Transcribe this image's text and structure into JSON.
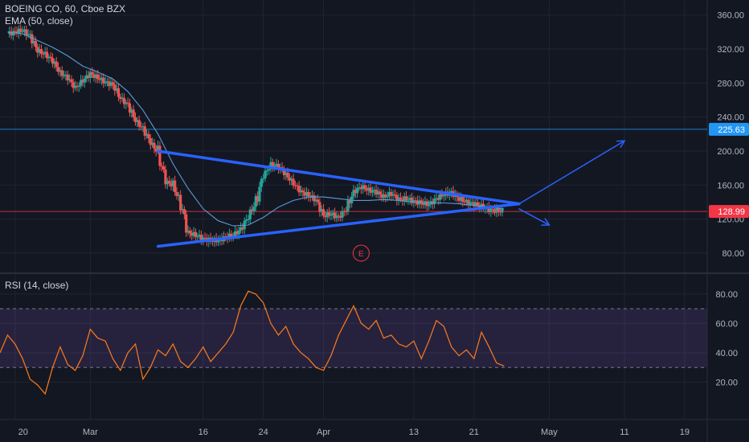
{
  "chart_data": {
    "type": "line",
    "panels": {
      "price": {
        "title_line": "BOEING CO, 60, Cboe BZX",
        "indicator_line": "EMA (50, close)",
        "y_ticks": [
          "360.00",
          "320.00",
          "280.00",
          "240.00",
          "200.00",
          "160.00",
          "120.00",
          "80.00"
        ],
        "ylim": [
          62,
          372
        ],
        "horizontal_lines": [
          {
            "value": 225.63,
            "label": "225.63",
            "color": "#2196f3"
          },
          {
            "value": 128.99,
            "label": "128.99",
            "color": "#f23645"
          }
        ],
        "earnings_marker": {
          "label": "E",
          "x": 46,
          "y": 80
        }
      },
      "rsi": {
        "title_line": "RSI (14, close)",
        "y_ticks": [
          "80.00",
          "60.00",
          "40.00",
          "20.00"
        ],
        "ylim": [
          0,
          92
        ],
        "band": [
          30,
          70
        ]
      }
    },
    "x_ticks": [
      {
        "label": "20",
        "x": 0
      },
      {
        "label": "Mar",
        "x": 10
      },
      {
        "label": "16",
        "x": 25
      },
      {
        "label": "24",
        "x": 33
      },
      {
        "label": "Apr",
        "x": 41
      },
      {
        "label": "13",
        "x": 53
      },
      {
        "label": "21",
        "x": 61
      },
      {
        "label": "May",
        "x": 71
      },
      {
        "label": "11",
        "x": 81
      },
      {
        "label": "19",
        "x": 89
      }
    ],
    "xlim": [
      -2,
      92
    ],
    "series": [
      {
        "kind": "price",
        "x": [
          -1,
          0,
          1,
          2,
          3,
          4,
          5,
          6,
          7,
          8,
          9,
          10,
          11,
          12,
          13,
          14,
          15,
          16,
          17,
          18,
          19,
          20,
          21,
          22,
          23,
          24,
          25,
          26,
          27,
          28,
          29,
          30,
          31,
          32,
          33,
          34,
          35,
          36,
          37,
          38,
          39,
          40,
          41,
          42,
          43,
          44,
          45,
          46,
          47,
          48,
          49,
          50,
          51,
          52,
          53,
          54,
          55,
          56,
          57,
          58,
          59,
          60,
          61,
          62,
          63,
          64,
          65
        ],
        "values": [
          338,
          340,
          342,
          335,
          318,
          314,
          306,
          292,
          286,
          274,
          283,
          291,
          286,
          281,
          278,
          262,
          254,
          236,
          226,
          210,
          198,
          164,
          160,
          138,
          104,
          101,
          97,
          95,
          95,
          99,
          101,
          108,
          123,
          140,
          171,
          184,
          182,
          172,
          162,
          152,
          148,
          142,
          124,
          126,
          122,
          132,
          152,
          158,
          154,
          152,
          146,
          150,
          143,
          144,
          141,
          139,
          137,
          144,
          149,
          151,
          144,
          140,
          138,
          135,
          131,
          130,
          129
        ],
        "color": "#ffffff"
      },
      {
        "name": "EMA (50, close)",
        "x": [
          -1,
          1,
          3,
          5,
          7,
          9,
          11,
          13,
          15,
          17,
          19,
          21,
          23,
          25,
          27,
          29,
          31,
          33,
          35,
          37,
          39,
          41,
          43,
          45,
          47,
          49,
          51,
          53,
          55,
          57,
          59,
          61,
          63,
          65
        ],
        "values": [
          340,
          338,
          330,
          322,
          312,
          300,
          293,
          285,
          270,
          248,
          220,
          185,
          156,
          132,
          118,
          112,
          113,
          122,
          134,
          142,
          146,
          146,
          144,
          142,
          142,
          143,
          142,
          140,
          139,
          139,
          138,
          136,
          134,
          132
        ],
        "color": "#5b9bd5"
      },
      {
        "name": "RSI (14, close)",
        "x": [
          -2,
          -1,
          0,
          1,
          2,
          3,
          4,
          5,
          6,
          7,
          8,
          9,
          10,
          11,
          12,
          13,
          14,
          15,
          16,
          17,
          18,
          19,
          20,
          21,
          22,
          23,
          24,
          25,
          26,
          27,
          28,
          29,
          30,
          31,
          32,
          33,
          34,
          35,
          36,
          37,
          38,
          39,
          40,
          41,
          42,
          43,
          44,
          45,
          46,
          47,
          48,
          49,
          50,
          51,
          52,
          53,
          54,
          55,
          56,
          57,
          58,
          59,
          60,
          61,
          62,
          63,
          64,
          65
        ],
        "values": [
          40,
          52,
          46,
          36,
          22,
          18,
          12,
          30,
          44,
          32,
          28,
          38,
          56,
          50,
          48,
          36,
          28,
          40,
          46,
          22,
          30,
          42,
          38,
          46,
          34,
          30,
          36,
          44,
          34,
          40,
          46,
          54,
          72,
          82,
          80,
          74,
          60,
          52,
          58,
          46,
          40,
          36,
          30,
          28,
          38,
          52,
          62,
          72,
          60,
          56,
          62,
          50,
          52,
          46,
          44,
          48,
          36,
          48,
          62,
          58,
          44,
          38,
          42,
          36,
          54,
          44,
          33,
          31
        ],
        "color": "#ff7a1a"
      }
    ],
    "drawings": {
      "triangle_upper": [
        [
          19,
          200
        ],
        [
          67,
          138
        ]
      ],
      "triangle_lower": [
        [
          19,
          88
        ],
        [
          67,
          138
        ]
      ],
      "arrow_up": [
        [
          67,
          138
        ],
        [
          81,
          212
        ]
      ],
      "arrow_down": [
        [
          67,
          132
        ],
        [
          71,
          113
        ]
      ]
    }
  }
}
